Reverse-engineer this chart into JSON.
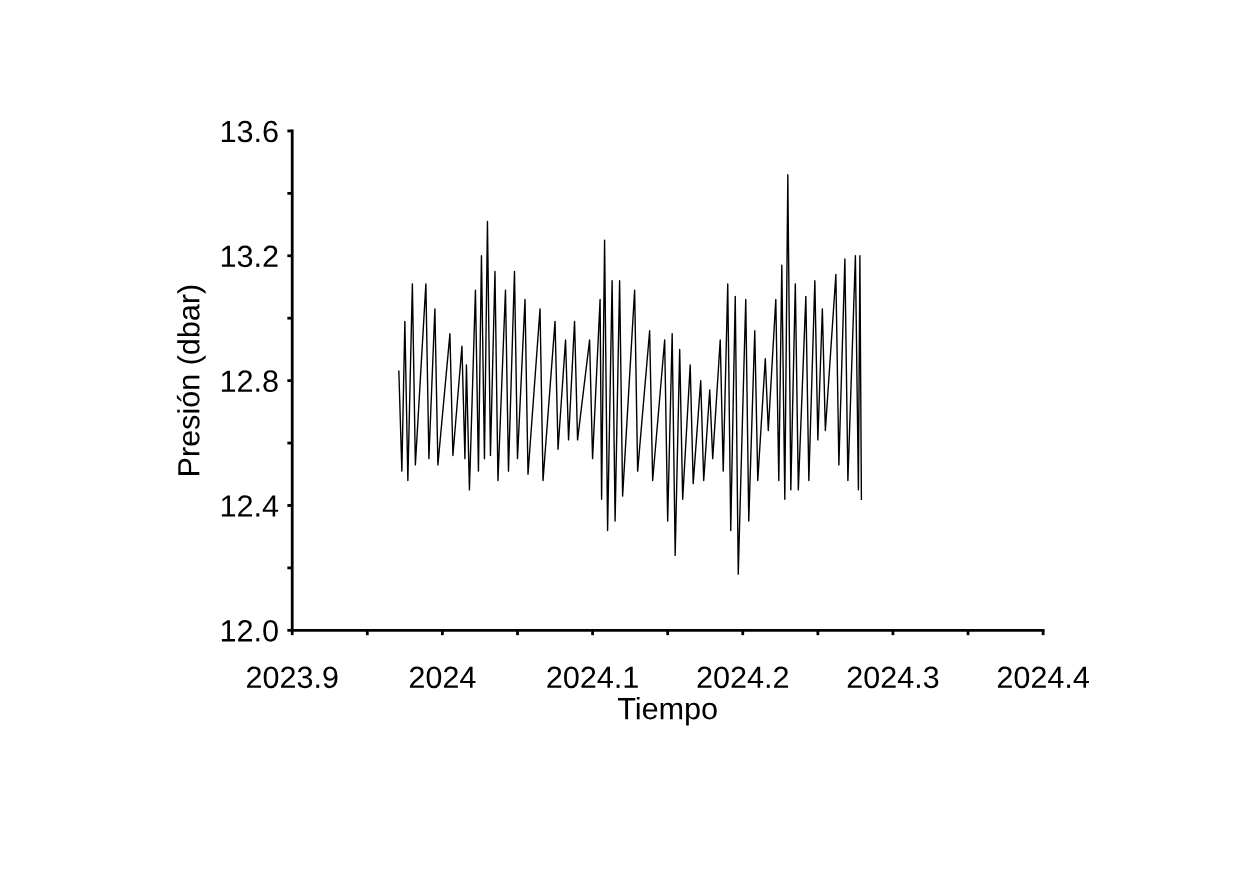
{
  "chart_data": {
    "type": "line",
    "xlabel": "Tiempo",
    "ylabel": "Presión (dbar)",
    "xlim": [
      2023.9,
      2024.4
    ],
    "ylim": [
      12.0,
      13.6
    ],
    "xticks": [
      {
        "value": 2023.9,
        "label": "2023.9"
      },
      {
        "value": 2023.95,
        "label": null
      },
      {
        "value": 2024.0,
        "label": "2024"
      },
      {
        "value": 2024.05,
        "label": null
      },
      {
        "value": 2024.1,
        "label": "2024.1"
      },
      {
        "value": 2024.15,
        "label": null
      },
      {
        "value": 2024.2,
        "label": "2024.2"
      },
      {
        "value": 2024.25,
        "label": null
      },
      {
        "value": 2024.3,
        "label": "2024.3"
      },
      {
        "value": 2024.35,
        "label": null
      },
      {
        "value": 2024.4,
        "label": "2024.4"
      }
    ],
    "yticks": [
      {
        "value": 12.0,
        "label": "12.0"
      },
      {
        "value": 12.2,
        "label": null
      },
      {
        "value": 12.4,
        "label": "12.4"
      },
      {
        "value": 12.6,
        "label": null
      },
      {
        "value": 12.8,
        "label": "12.8"
      },
      {
        "value": 13.0,
        "label": null
      },
      {
        "value": 13.2,
        "label": "13.2"
      },
      {
        "value": 13.4,
        "label": null
      },
      {
        "value": 13.6,
        "label": "13.6"
      }
    ],
    "series": [
      {
        "color": "#000000",
        "x": [
          2023.971,
          2023.973,
          2023.975,
          2023.977,
          2023.98,
          2023.982,
          2023.989,
          2023.991,
          2023.995,
          2023.997,
          2024.005,
          2024.007,
          2024.013,
          2024.015,
          2024.016,
          2024.018,
          2024.022,
          2024.024,
          2024.026,
          2024.028,
          2024.03,
          2024.032,
          2024.035,
          2024.037,
          2024.042,
          2024.044,
          2024.048,
          2024.05,
          2024.055,
          2024.057,
          2024.065,
          2024.067,
          2024.075,
          2024.077,
          2024.082,
          2024.084,
          2024.088,
          2024.09,
          2024.098,
          2024.1,
          2024.105,
          2024.106,
          2024.108,
          2024.11,
          2024.113,
          2024.115,
          2024.118,
          2024.12,
          2024.128,
          2024.13,
          2024.138,
          2024.14,
          2024.148,
          2024.15,
          2024.153,
          2024.155,
          2024.158,
          2024.16,
          2024.165,
          2024.167,
          2024.172,
          2024.174,
          2024.178,
          2024.18,
          2024.185,
          2024.187,
          2024.19,
          2024.192,
          2024.195,
          2024.197,
          2024.202,
          2024.204,
          2024.208,
          2024.21,
          2024.215,
          2024.217,
          2024.222,
          2024.224,
          2024.226,
          2024.228,
          2024.23,
          2024.232,
          2024.235,
          2024.237,
          2024.242,
          2024.244,
          2024.248,
          2024.25,
          2024.253,
          2024.255,
          2024.262,
          2024.264,
          2024.268,
          2024.27,
          2024.275,
          2024.277,
          2024.278,
          2024.279
        ],
        "values": [
          12.83,
          12.51,
          12.99,
          12.48,
          13.11,
          12.53,
          13.11,
          12.55,
          13.03,
          12.53,
          12.95,
          12.56,
          12.91,
          12.55,
          12.85,
          12.45,
          13.09,
          12.51,
          13.2,
          12.55,
          13.31,
          12.56,
          13.15,
          12.48,
          13.09,
          12.51,
          13.15,
          12.55,
          13.06,
          12.5,
          13.03,
          12.48,
          12.99,
          12.58,
          12.93,
          12.61,
          12.99,
          12.61,
          12.93,
          12.55,
          13.06,
          12.42,
          13.25,
          12.32,
          13.12,
          12.35,
          13.12,
          12.43,
          13.09,
          12.51,
          12.96,
          12.48,
          12.93,
          12.35,
          12.95,
          12.24,
          12.9,
          12.42,
          12.85,
          12.47,
          12.8,
          12.48,
          12.77,
          12.55,
          12.93,
          12.51,
          13.11,
          12.32,
          13.07,
          12.18,
          13.06,
          12.35,
          12.96,
          12.48,
          12.87,
          12.64,
          13.06,
          12.48,
          13.17,
          12.42,
          13.46,
          12.45,
          13.11,
          12.45,
          13.07,
          12.48,
          13.12,
          12.61,
          13.03,
          12.64,
          13.14,
          12.53,
          13.19,
          12.48,
          13.2,
          12.45,
          13.2,
          12.42
        ]
      }
    ]
  }
}
